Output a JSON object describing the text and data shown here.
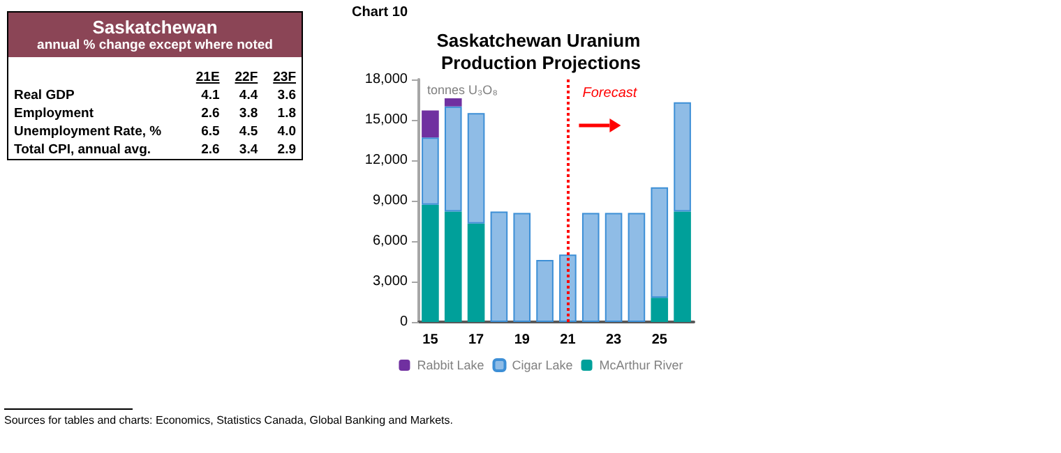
{
  "chart_data": [
    {
      "type": "other",
      "title": "Saskatchewan",
      "subtitle": "annual % change except where noted",
      "categories": [
        "21E",
        "22F",
        "23F"
      ],
      "y_categories": [
        "Real GDP",
        "Employment",
        "Unemployment Rate, %",
        "Total CPI, annual avg."
      ],
      "cell_labels": [
        [
          "4.1",
          "4.4",
          "3.6"
        ],
        [
          "2.6",
          "3.8",
          "1.8"
        ],
        [
          "6.5",
          "4.5",
          "4.0"
        ],
        [
          "2.6",
          "3.4",
          "2.9"
        ]
      ]
    },
    {
      "type": "bar",
      "stacked": true,
      "title": "Saskatchewan Uranium Production Projections",
      "ylabel": "tonnes U₃O₈",
      "categories": [
        "15",
        null,
        "17",
        null,
        "19",
        null,
        "21",
        null,
        "23",
        null,
        "25",
        null
      ],
      "series": [
        {
          "name": "McArthur River",
          "color": "#00a09a",
          "values": [
            8700,
            8200,
            7300,
            null,
            null,
            null,
            null,
            null,
            null,
            null,
            1800,
            8200
          ]
        },
        {
          "name": "Cigar Lake",
          "color": "#8fbce6",
          "values": [
            5000,
            7800,
            8200,
            8200,
            8100,
            4600,
            5000,
            8100,
            8100,
            8100,
            8200,
            8100
          ]
        },
        {
          "name": "Rabbit Lake",
          "color": "#7030a0",
          "values": [
            2000,
            600,
            null,
            null,
            null,
            null,
            null,
            null,
            null,
            null,
            null,
            null
          ]
        }
      ],
      "ylim": [
        0,
        18000
      ],
      "yticks": [
        0,
        {
          "value": 3000,
          "label": "3,000"
        },
        {
          "value": 6000,
          "label": "6,000"
        },
        {
          "value": 9000,
          "label": "9,000"
        },
        {
          "value": 12000,
          "label": "12,000"
        },
        {
          "value": 15000,
          "label": "15,000"
        },
        {
          "value": 18000,
          "label": "18,000"
        }
      ],
      "grid": false,
      "legend": "bottom",
      "ref_lines": [
        {
          "axis": "x",
          "value": "21",
          "label": "Forecast",
          "color": "#ff0000",
          "line_style": "dotted"
        }
      ],
      "annotations": [
        "Chart 10",
        "Sources for tables and charts: Economics, Statistics Canada, Global Banking and Markets."
      ]
    }
  ]
}
